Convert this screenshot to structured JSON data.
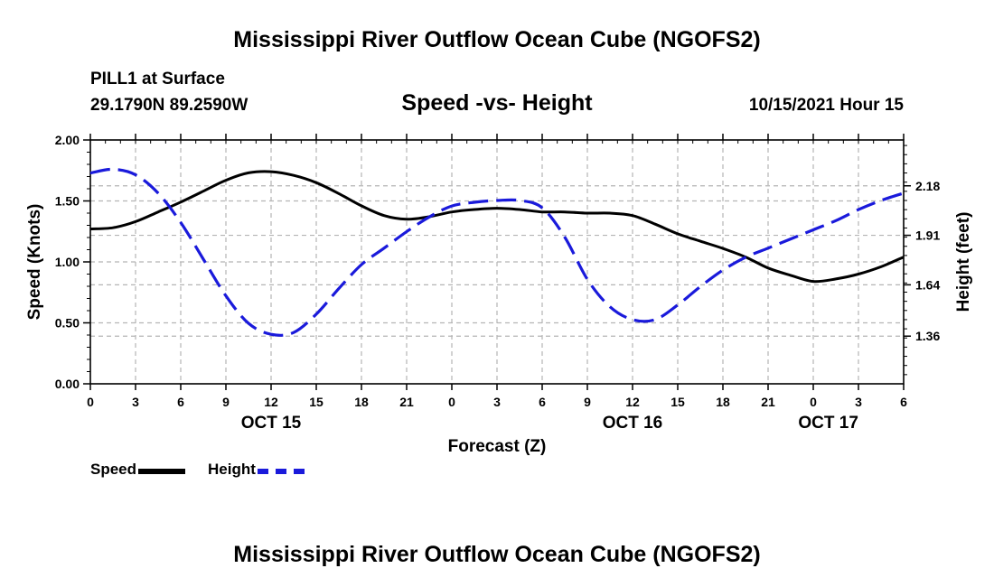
{
  "header": {
    "title": "Mississippi River Outflow Ocean Cube (NGOFS2)",
    "station": "PILL1 at Surface",
    "coords": "29.1790N  89.2590W",
    "subtitle": "Speed -vs- Height",
    "datetime": "10/15/2021 Hour 15"
  },
  "footer": {
    "title": "Mississippi River Outflow Ocean Cube (NGOFS2)"
  },
  "legend": {
    "speed_label": "Speed",
    "height_label": "Height"
  },
  "colors": {
    "speed": "#000000",
    "height": "#1a1adb",
    "grid": "#b4b4b4"
  },
  "chart_data": {
    "type": "line",
    "title": "Speed -vs- Height",
    "xlabel": "Forecast (Z)",
    "ylabel": "Speed (Knots)",
    "y2label": "Height (feet)",
    "x_unit": "forecast hour",
    "xlim": [
      0,
      54
    ],
    "ylim": [
      0,
      2
    ],
    "y2lim": [
      1.1,
      2.43
    ],
    "x_ticks": [
      {
        "x": 0,
        "label": "0"
      },
      {
        "x": 3,
        "label": "3"
      },
      {
        "x": 6,
        "label": "6"
      },
      {
        "x": 9,
        "label": "9"
      },
      {
        "x": 12,
        "label": "12"
      },
      {
        "x": 15,
        "label": "15"
      },
      {
        "x": 18,
        "label": "18"
      },
      {
        "x": 21,
        "label": "21"
      },
      {
        "x": 24,
        "label": "0"
      },
      {
        "x": 27,
        "label": "3"
      },
      {
        "x": 30,
        "label": "6"
      },
      {
        "x": 33,
        "label": "9"
      },
      {
        "x": 36,
        "label": "12"
      },
      {
        "x": 39,
        "label": "15"
      },
      {
        "x": 42,
        "label": "18"
      },
      {
        "x": 45,
        "label": "21"
      },
      {
        "x": 48,
        "label": "0"
      },
      {
        "x": 51,
        "label": "3"
      },
      {
        "x": 54,
        "label": "6"
      }
    ],
    "date_labels": [
      {
        "x": 12,
        "label": "OCT 15"
      },
      {
        "x": 36,
        "label": "OCT 16"
      },
      {
        "x": 49,
        "label": "OCT 17"
      }
    ],
    "y_ticks": [
      {
        "value": 0,
        "label": "0.00"
      },
      {
        "value": 0.5,
        "label": "0.50"
      },
      {
        "value": 1,
        "label": "1.00"
      },
      {
        "value": 1.5,
        "label": "1.50"
      },
      {
        "value": 2,
        "label": "2.00"
      }
    ],
    "y2_ticks": [
      {
        "value": 1.36,
        "label": "1.36"
      },
      {
        "value": 1.64,
        "label": "1.64"
      },
      {
        "value": 1.91,
        "label": "1.91"
      },
      {
        "value": 2.18,
        "label": "2.18"
      }
    ],
    "grid": true,
    "legend_position": "bottom-left",
    "series": [
      {
        "name": "Speed",
        "axis": "left",
        "style": "solid",
        "x": [
          0,
          1.5,
          3,
          4.5,
          6,
          7.5,
          9,
          10.5,
          12,
          13.5,
          15,
          16.5,
          18,
          19.5,
          21,
          22.5,
          24,
          25.5,
          27,
          28.5,
          30,
          31.5,
          33,
          34.5,
          36,
          37.5,
          39,
          40.5,
          42,
          43.5,
          45,
          46.5,
          48,
          49.5,
          51,
          52.5,
          54
        ],
        "values": [
          1.27,
          1.28,
          1.33,
          1.41,
          1.49,
          1.58,
          1.67,
          1.73,
          1.74,
          1.71,
          1.65,
          1.56,
          1.46,
          1.38,
          1.35,
          1.37,
          1.41,
          1.43,
          1.44,
          1.43,
          1.41,
          1.41,
          1.4,
          1.4,
          1.38,
          1.31,
          1.23,
          1.17,
          1.11,
          1.04,
          0.95,
          0.89,
          0.84,
          0.86,
          0.9,
          0.96,
          1.04
        ]
      },
      {
        "name": "Height",
        "axis": "right",
        "style": "dashed",
        "x": [
          0,
          1.5,
          3,
          4.5,
          6,
          7.5,
          9,
          10.5,
          12,
          13.5,
          15,
          16.5,
          18,
          19.5,
          21,
          22.5,
          24,
          25.5,
          27,
          28.5,
          30,
          31.5,
          33,
          34.5,
          36,
          37.5,
          39,
          40.5,
          42,
          43.5,
          45,
          46.5,
          48,
          49.5,
          51,
          52.5,
          54
        ],
        "values": [
          2.25,
          2.27,
          2.24,
          2.14,
          1.98,
          1.78,
          1.58,
          1.43,
          1.37,
          1.38,
          1.48,
          1.62,
          1.75,
          1.84,
          1.93,
          2.01,
          2.07,
          2.09,
          2.1,
          2.1,
          2.06,
          1.9,
          1.67,
          1.52,
          1.45,
          1.45,
          1.53,
          1.63,
          1.72,
          1.79,
          1.84,
          1.89,
          1.94,
          1.99,
          2.05,
          2.1,
          2.14
        ]
      }
    ]
  }
}
